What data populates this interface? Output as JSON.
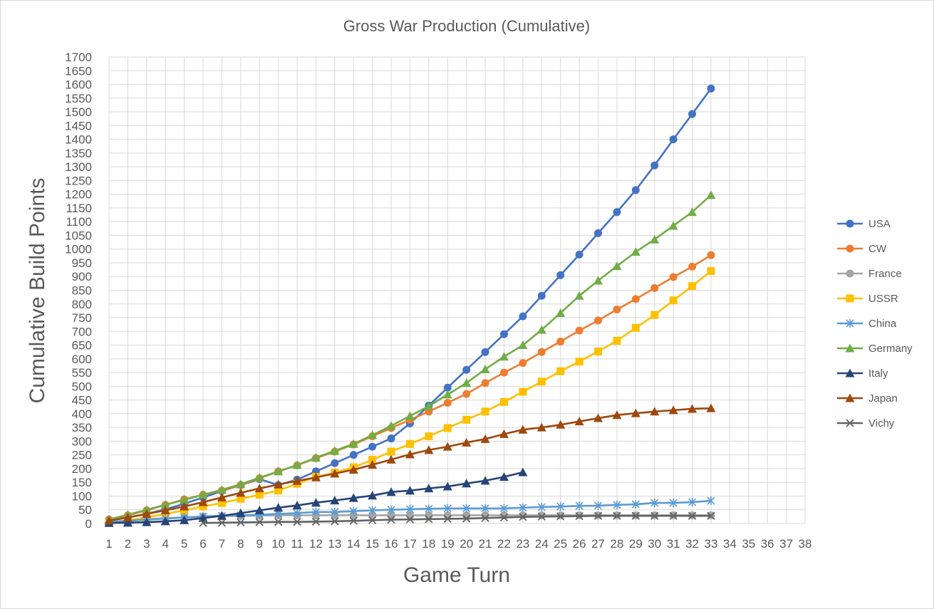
{
  "chart_data": {
    "type": "line",
    "title": "Gross War Production (Cumulative)",
    "xlabel": "Game Turn",
    "ylabel": "Cumulative Build Points",
    "xlim": [
      1,
      38
    ],
    "ylim": [
      0,
      1700
    ],
    "ytick_step": 50,
    "grid": true,
    "legend_position": "right",
    "x_ticks": [
      1,
      2,
      3,
      4,
      5,
      6,
      7,
      8,
      9,
      10,
      11,
      12,
      13,
      14,
      15,
      16,
      17,
      18,
      19,
      20,
      21,
      22,
      23,
      24,
      25,
      26,
      27,
      28,
      29,
      30,
      31,
      32,
      33,
      34,
      35,
      36,
      37,
      38
    ],
    "y_ticks": [
      0,
      50,
      100,
      150,
      200,
      250,
      300,
      350,
      400,
      450,
      500,
      550,
      600,
      650,
      700,
      750,
      800,
      850,
      900,
      950,
      1000,
      1050,
      1100,
      1150,
      1200,
      1250,
      1300,
      1350,
      1400,
      1450,
      1500,
      1550,
      1600,
      1650,
      1700
    ],
    "series": [
      {
        "name": "USA",
        "color": "#4472C4",
        "marker": "circle",
        "x_start": 1,
        "values": [
          10,
          22,
          35,
          52,
          72,
          95,
          118,
          140,
          162,
          140,
          160,
          190,
          220,
          250,
          280,
          310,
          365,
          430,
          495,
          560,
          625,
          690,
          755,
          830,
          905,
          980,
          1058,
          1135,
          1215,
          1305,
          1400,
          1492,
          1585
        ]
      },
      {
        "name": "CW",
        "color": "#ED7D31",
        "marker": "circle",
        "x_start": 1,
        "values": [
          15,
          30,
          48,
          68,
          88,
          105,
          120,
          140,
          165,
          190,
          212,
          238,
          262,
          288,
          318,
          348,
          378,
          408,
          440,
          472,
          512,
          550,
          585,
          625,
          663,
          703,
          740,
          780,
          818,
          858,
          898,
          936,
          978
        ]
      },
      {
        "name": "France",
        "color": "#A5A5A5",
        "marker": "circle",
        "x_start": 1,
        "values": [
          5,
          10,
          15,
          20,
          22,
          25,
          27,
          28,
          29,
          30,
          30,
          30,
          30,
          30,
          30,
          30,
          30,
          30,
          30,
          30,
          30,
          30,
          30,
          30,
          30,
          30,
          30,
          30,
          30,
          30,
          30,
          30,
          30
        ]
      },
      {
        "name": "USSR",
        "color": "#FFC000",
        "marker": "square",
        "x_start": 1,
        "values": [
          5,
          12,
          22,
          35,
          48,
          62,
          75,
          90,
          105,
          120,
          145,
          170,
          185,
          205,
          232,
          262,
          290,
          318,
          348,
          378,
          408,
          443,
          480,
          517,
          555,
          590,
          627,
          666,
          713,
          760,
          813,
          865,
          920
        ]
      },
      {
        "name": "China",
        "color": "#5B9BD5",
        "marker": "star",
        "x_start": 1,
        "values": [
          5,
          10,
          14,
          18,
          22,
          26,
          28,
          30,
          32,
          35,
          38,
          42,
          42,
          45,
          48,
          50,
          52,
          54,
          55,
          55,
          55,
          55,
          58,
          60,
          62,
          64,
          65,
          68,
          70,
          75,
          75,
          78,
          83
        ]
      },
      {
        "name": "Germany",
        "color": "#70AD47",
        "marker": "triangle",
        "x_start": 1,
        "values": [
          15,
          32,
          50,
          68,
          86,
          105,
          123,
          143,
          167,
          190,
          213,
          240,
          265,
          290,
          322,
          356,
          392,
          428,
          470,
          512,
          562,
          608,
          650,
          706,
          767,
          830,
          885,
          938,
          990,
          1035,
          1085,
          1135,
          1197
        ]
      },
      {
        "name": "Italy",
        "color": "#264478",
        "marker": "triangle",
        "x_start": 1,
        "values": [
          2,
          3,
          5,
          8,
          12,
          20,
          28,
          38,
          48,
          58,
          66,
          76,
          84,
          93,
          102,
          115,
          120,
          128,
          135,
          146,
          156,
          170,
          187
        ]
      },
      {
        "name": "Japan",
        "color": "#9E480E",
        "marker": "triangle",
        "x_start": 1,
        "values": [
          10,
          22,
          35,
          48,
          62,
          78,
          95,
          112,
          128,
          142,
          155,
          168,
          182,
          196,
          214,
          233,
          252,
          268,
          280,
          295,
          308,
          326,
          342,
          350,
          360,
          372,
          384,
          395,
          402,
          408,
          413,
          418,
          420
        ]
      },
      {
        "name": "Vichy",
        "color": "#636363",
        "marker": "x",
        "x_start": 6,
        "values": [
          2,
          3,
          4,
          5,
          6,
          6,
          7,
          8,
          10,
          12,
          14,
          15,
          16,
          17,
          18,
          20,
          22,
          24,
          25,
          26,
          27,
          28,
          28,
          28,
          28,
          28,
          28,
          28
        ]
      }
    ]
  }
}
